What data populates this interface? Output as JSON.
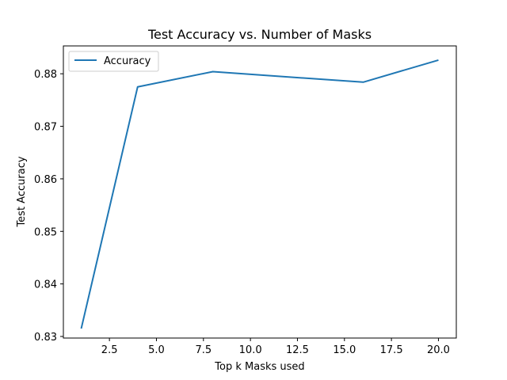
{
  "chart_data": {
    "type": "line",
    "title": "Test Accuracy vs. Number of Masks",
    "xlabel": "Top k Masks used",
    "ylabel": "Test Accuracy",
    "xlim": [
      0.05,
      20.95
    ],
    "ylim": [
      0.8297,
      0.8853
    ],
    "xticks": [
      2.5,
      5.0,
      7.5,
      10.0,
      12.5,
      15.0,
      17.5,
      20.0
    ],
    "xtick_labels": [
      "2.5",
      "5.0",
      "7.5",
      "10.0",
      "12.5",
      "15.0",
      "17.5",
      "20.0"
    ],
    "yticks": [
      0.83,
      0.84,
      0.85,
      0.86,
      0.87,
      0.88
    ],
    "ytick_labels": [
      "0.83",
      "0.84",
      "0.85",
      "0.86",
      "0.87",
      "0.88"
    ],
    "grid": false,
    "legend_position": "top-left",
    "series": [
      {
        "name": "Accuracy",
        "color": "#1f77b4",
        "x": [
          1,
          4,
          8,
          16,
          20
        ],
        "y": [
          0.8315,
          0.8775,
          0.8804,
          0.8784,
          0.8826
        ]
      }
    ]
  }
}
